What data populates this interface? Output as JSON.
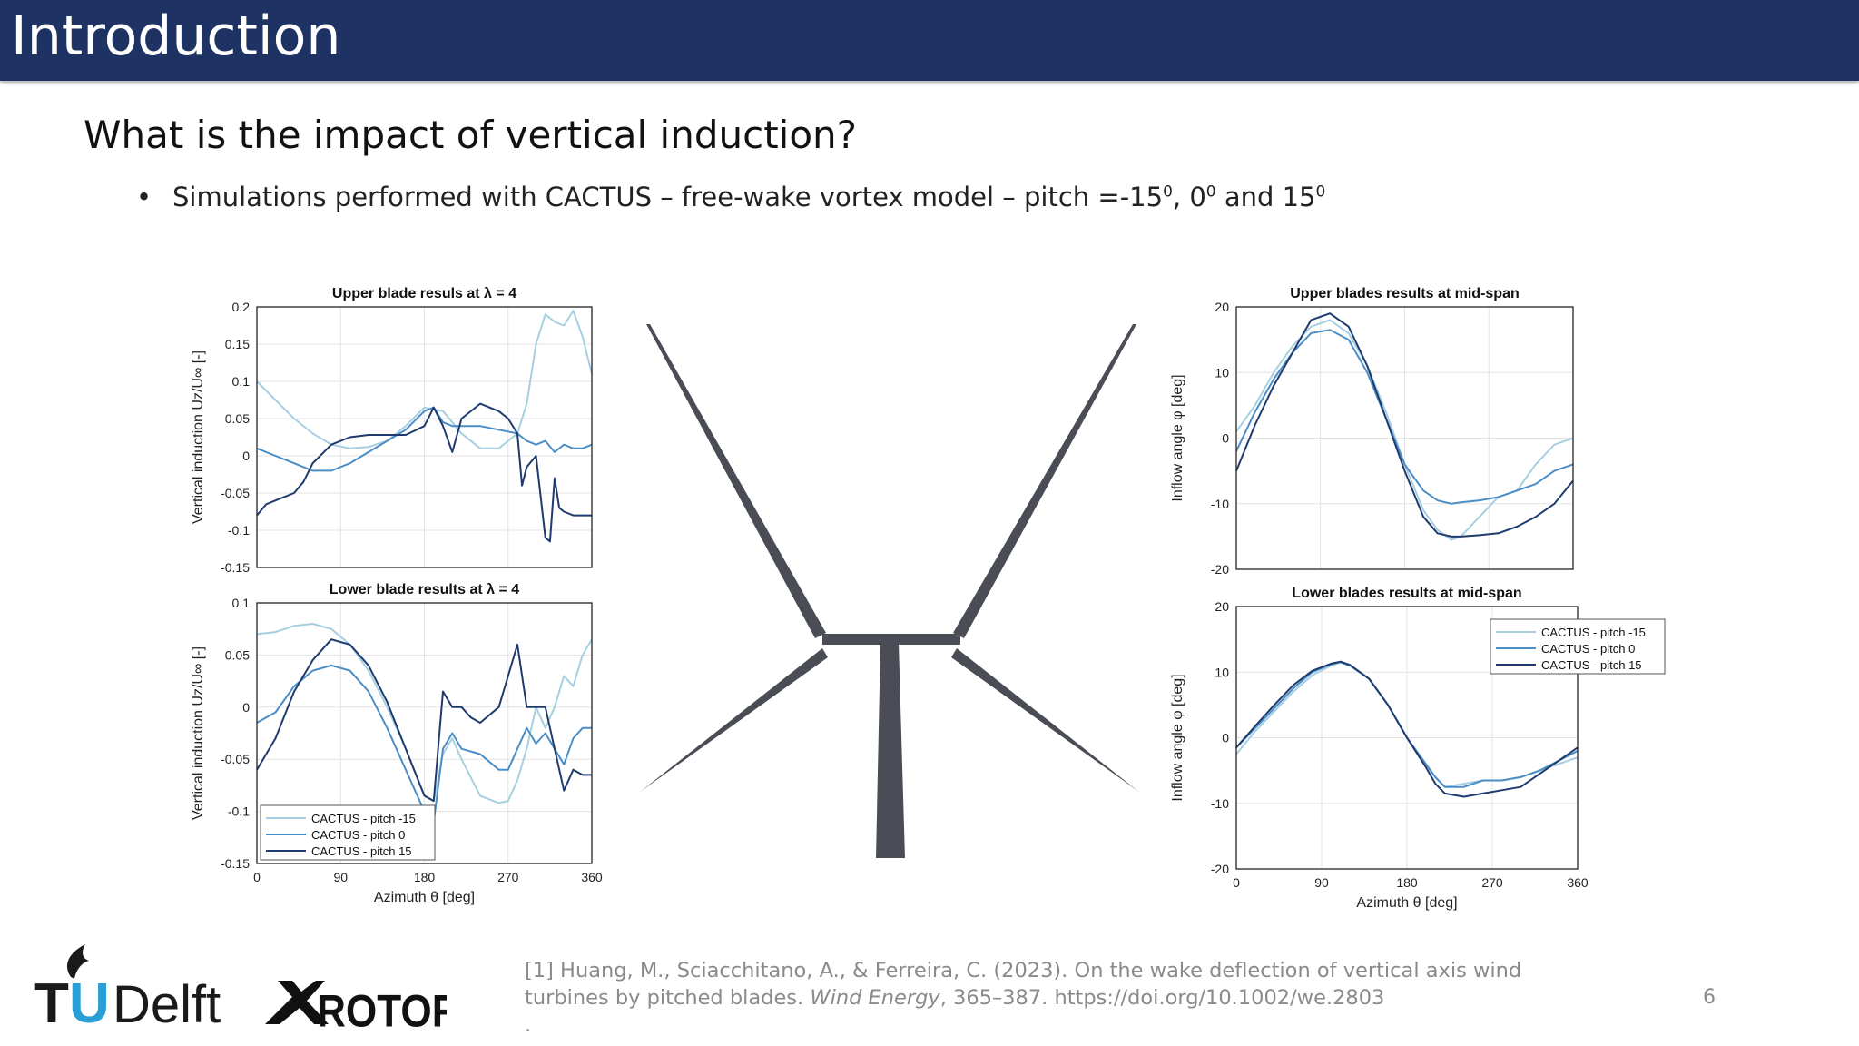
{
  "slide": {
    "title": "Introduction",
    "subtitle": "What is the impact of vertical induction?",
    "bullet": {
      "text": "Simulations performed with CACTUS – free-wake vortex model – pitch =-15",
      "sup1": "0",
      "mid1": ", 0",
      "sup2": "0",
      "mid2": " and 15",
      "sup3": "0"
    },
    "reference": {
      "line1": "[1] Huang, M., Sciacchitano, A., & Ferreira, C. (2023). On the wake deflection of vertical axis wind",
      "line2_pre": "turbines by pitched blades. ",
      "line2_journal": "Wind Energy",
      "line2_post": ", 365–387. https://doi.org/10.1002/we.2803",
      "line3": "."
    },
    "page_number": "6"
  },
  "logos": {
    "tudelft": "TUDelft",
    "xrotor": "XROTOR"
  },
  "colors": {
    "title_bar": "#1f3264",
    "pitch_m15": "#a7cfe2",
    "pitch_0": "#4b8ec6",
    "pitch_15": "#1f3b6e",
    "turbine": "#4a4d55"
  },
  "chart_data": [
    {
      "id": "upper-induction",
      "type": "line",
      "title": "Upper blade resuls at λ = 4",
      "xlabel": "",
      "ylabel": "Vertical induction Uz/U∞ [-]",
      "xlim": [
        0,
        360
      ],
      "ylim": [
        -0.15,
        0.2
      ],
      "xticks": [
        0,
        90,
        180,
        270,
        360
      ],
      "yticks": [
        0.2,
        0.15,
        0.1,
        0.05,
        0,
        -0.05,
        -0.1,
        -0.15
      ],
      "ytick_labels": [
        "0.2",
        "0.15",
        "0.1",
        "0.05",
        "0",
        "-0.05",
        "-0.1",
        "-0.15"
      ],
      "xtick_labels": [],
      "grid": true,
      "series": [
        {
          "name": "CACTUS - pitch -15",
          "x": [
            0,
            20,
            40,
            60,
            80,
            100,
            120,
            140,
            160,
            180,
            200,
            220,
            240,
            260,
            280,
            290,
            300,
            310,
            320,
            330,
            340,
            350,
            360
          ],
          "y": [
            0.1,
            0.075,
            0.05,
            0.03,
            0.015,
            0.01,
            0.012,
            0.02,
            0.04,
            0.065,
            0.06,
            0.03,
            0.01,
            0.01,
            0.03,
            0.07,
            0.15,
            0.19,
            0.18,
            0.175,
            0.195,
            0.16,
            0.11
          ]
        },
        {
          "name": "CACTUS - pitch 0",
          "x": [
            0,
            20,
            40,
            60,
            80,
            100,
            120,
            140,
            160,
            180,
            190,
            200,
            210,
            220,
            240,
            260,
            280,
            290,
            300,
            310,
            320,
            330,
            340,
            350,
            360
          ],
          "y": [
            0.01,
            0.0,
            -0.01,
            -0.02,
            -0.02,
            -0.01,
            0.005,
            0.02,
            0.035,
            0.06,
            0.065,
            0.045,
            0.04,
            0.04,
            0.04,
            0.035,
            0.03,
            0.02,
            0.015,
            0.02,
            0.005,
            0.015,
            0.01,
            0.01,
            0.015
          ]
        },
        {
          "name": "CACTUS - pitch 15",
          "x": [
            0,
            10,
            20,
            40,
            50,
            60,
            80,
            100,
            120,
            140,
            160,
            180,
            190,
            200,
            210,
            220,
            240,
            260,
            270,
            280,
            285,
            290,
            300,
            310,
            315,
            320,
            325,
            330,
            340,
            350,
            360
          ],
          "y": [
            -0.08,
            -0.065,
            -0.06,
            -0.05,
            -0.035,
            -0.01,
            0.015,
            0.025,
            0.028,
            0.028,
            0.028,
            0.04,
            0.065,
            0.04,
            0.005,
            0.05,
            0.07,
            0.06,
            0.05,
            0.03,
            -0.04,
            -0.015,
            0.0,
            -0.11,
            -0.115,
            -0.03,
            -0.07,
            -0.075,
            -0.08,
            -0.08,
            -0.08
          ]
        }
      ]
    },
    {
      "id": "lower-induction",
      "type": "line",
      "title": "Lower blade results at λ = 4",
      "xlabel": "Azimuth θ [deg]",
      "ylabel": "Vertical induction Uz/U∞ [-]",
      "xlim": [
        0,
        360
      ],
      "ylim": [
        -0.15,
        0.1
      ],
      "xticks": [
        0,
        90,
        180,
        270,
        360
      ],
      "yticks": [
        0.1,
        0.05,
        0,
        -0.05,
        -0.1,
        -0.15
      ],
      "ytick_labels": [
        "0.1",
        "0.05",
        "0",
        "-0.05",
        "-0.1",
        "-0.15"
      ],
      "xtick_labels": [
        "0",
        "90",
        "180",
        "270",
        "360"
      ],
      "grid": true,
      "legend": {
        "position": "bottom-left",
        "entries": [
          "CACTUS - pitch -15",
          "CACTUS - pitch 0",
          "CACTUS - pitch 15"
        ]
      },
      "series": [
        {
          "name": "CACTUS - pitch -15",
          "x": [
            0,
            20,
            40,
            60,
            80,
            100,
            120,
            140,
            160,
            180,
            190,
            200,
            210,
            220,
            240,
            260,
            270,
            280,
            290,
            300,
            310,
            320,
            330,
            340,
            350,
            360
          ],
          "y": [
            0.07,
            0.072,
            0.078,
            0.08,
            0.075,
            0.06,
            0.035,
            0.0,
            -0.04,
            -0.085,
            -0.09,
            -0.045,
            -0.03,
            -0.05,
            -0.085,
            -0.092,
            -0.09,
            -0.07,
            -0.04,
            0.0,
            -0.02,
            0.0,
            0.03,
            0.02,
            0.05,
            0.065
          ]
        },
        {
          "name": "CACTUS - pitch 0",
          "x": [
            0,
            20,
            40,
            60,
            80,
            100,
            120,
            140,
            160,
            180,
            190,
            200,
            210,
            220,
            240,
            260,
            270,
            280,
            290,
            300,
            310,
            320,
            330,
            340,
            350,
            360
          ],
          "y": [
            -0.015,
            -0.005,
            0.02,
            0.035,
            0.04,
            0.035,
            0.015,
            -0.02,
            -0.06,
            -0.1,
            -0.11,
            -0.04,
            -0.025,
            -0.04,
            -0.045,
            -0.06,
            -0.06,
            -0.04,
            -0.02,
            -0.035,
            -0.025,
            -0.04,
            -0.055,
            -0.03,
            -0.02,
            -0.02
          ]
        },
        {
          "name": "CACTUS - pitch 15",
          "x": [
            0,
            20,
            40,
            60,
            80,
            100,
            120,
            140,
            160,
            180,
            190,
            200,
            210,
            220,
            230,
            240,
            260,
            270,
            280,
            290,
            300,
            310,
            320,
            330,
            340,
            350,
            360
          ],
          "y": [
            -0.06,
            -0.03,
            0.015,
            0.045,
            0.065,
            0.06,
            0.04,
            0.005,
            -0.04,
            -0.085,
            -0.09,
            0.015,
            0.0,
            0.0,
            -0.01,
            -0.015,
            0.0,
            0.03,
            0.06,
            0.0,
            0.0,
            0.0,
            -0.04,
            -0.08,
            -0.06,
            -0.065,
            -0.065
          ]
        }
      ]
    },
    {
      "id": "upper-inflow",
      "type": "line",
      "title": "Upper blades results at mid-span",
      "xlabel": "",
      "ylabel": "Inflow angle φ [deg]",
      "xlim": [
        0,
        360
      ],
      "ylim": [
        -20,
        20
      ],
      "xticks": [
        0,
        90,
        180,
        270,
        360
      ],
      "yticks": [
        20,
        10,
        0,
        -10,
        -20
      ],
      "ytick_labels": [
        "20",
        "10",
        "0",
        "-10",
        "-20"
      ],
      "xtick_labels": [],
      "grid": true,
      "series": [
        {
          "name": "CACTUS - pitch -15",
          "x": [
            0,
            20,
            40,
            60,
            80,
            100,
            120,
            140,
            160,
            180,
            200,
            215,
            230,
            240,
            260,
            280,
            300,
            320,
            340,
            360
          ],
          "y": [
            1,
            5,
            10,
            14,
            17,
            18,
            16,
            11,
            4,
            -4,
            -11,
            -14,
            -15.5,
            -15,
            -12,
            -9,
            -8,
            -4,
            -1,
            0
          ]
        },
        {
          "name": "CACTUS - pitch 0",
          "x": [
            0,
            20,
            40,
            60,
            80,
            100,
            120,
            140,
            160,
            180,
            200,
            215,
            230,
            240,
            260,
            280,
            300,
            320,
            340,
            360
          ],
          "y": [
            -2,
            4,
            9,
            13,
            16,
            16.5,
            15,
            10,
            3,
            -4,
            -8,
            -9.5,
            -10,
            -9.8,
            -9.5,
            -9,
            -8,
            -7,
            -5,
            -4
          ]
        },
        {
          "name": "CACTUS - pitch 15",
          "x": [
            0,
            20,
            40,
            60,
            80,
            100,
            120,
            140,
            160,
            180,
            200,
            215,
            230,
            240,
            260,
            280,
            300,
            320,
            340,
            360
          ],
          "y": [
            -5,
            2,
            8,
            13,
            18,
            19,
            17,
            11,
            3,
            -5,
            -12,
            -14.5,
            -15,
            -15,
            -14.8,
            -14.5,
            -13.5,
            -12,
            -10,
            -6.5
          ]
        }
      ]
    },
    {
      "id": "lower-inflow",
      "type": "line",
      "title": "Lower blades results at mid-span",
      "xlabel": "Azimuth θ [deg]",
      "ylabel": "Inflow angle φ [deg]",
      "xlim": [
        0,
        360
      ],
      "ylim": [
        -20,
        20
      ],
      "xticks": [
        0,
        90,
        180,
        270,
        360
      ],
      "yticks": [
        20,
        10,
        0,
        -10,
        -20
      ],
      "ytick_labels": [
        "20",
        "10",
        "0",
        "-10",
        "-20"
      ],
      "xtick_labels": [
        "0",
        "90",
        "180",
        "270",
        "360"
      ],
      "grid": true,
      "legend": {
        "position": "top-right",
        "entries": [
          "CACTUS - pitch -15",
          "CACTUS - pitch 0",
          "CACTUS - pitch 15"
        ]
      },
      "series": [
        {
          "name": "CACTUS - pitch -15",
          "x": [
            0,
            20,
            40,
            60,
            80,
            100,
            110,
            120,
            140,
            160,
            180,
            200,
            210,
            220,
            240,
            260,
            280,
            300,
            320,
            340,
            360
          ],
          "y": [
            -2.5,
            1,
            4,
            7,
            9.5,
            11,
            11.5,
            11,
            9,
            5,
            0,
            -4,
            -6,
            -7.5,
            -7,
            -6.5,
            -6.5,
            -6,
            -5,
            -4,
            -3
          ]
        },
        {
          "name": "CACTUS - pitch 0",
          "x": [
            0,
            20,
            40,
            60,
            80,
            100,
            110,
            120,
            140,
            160,
            180,
            200,
            210,
            220,
            240,
            260,
            280,
            300,
            320,
            340,
            360
          ],
          "y": [
            -1.5,
            1.5,
            4.5,
            7.5,
            10,
            11.2,
            11.5,
            11,
            9,
            5,
            0,
            -4,
            -6,
            -7.5,
            -7.5,
            -6.5,
            -6.5,
            -6,
            -5,
            -3.5,
            -2
          ]
        },
        {
          "name": "CACTUS - pitch 15",
          "x": [
            0,
            20,
            40,
            60,
            80,
            100,
            110,
            120,
            140,
            160,
            180,
            200,
            210,
            220,
            240,
            260,
            280,
            300,
            320,
            340,
            360
          ],
          "y": [
            -1.5,
            1.8,
            5,
            8,
            10.2,
            11.3,
            11.6,
            11.1,
            9,
            5,
            0,
            -4.5,
            -7,
            -8.5,
            -9,
            -8.5,
            -8,
            -7.5,
            -5.5,
            -3.5,
            -1.5
          ]
        }
      ]
    }
  ]
}
